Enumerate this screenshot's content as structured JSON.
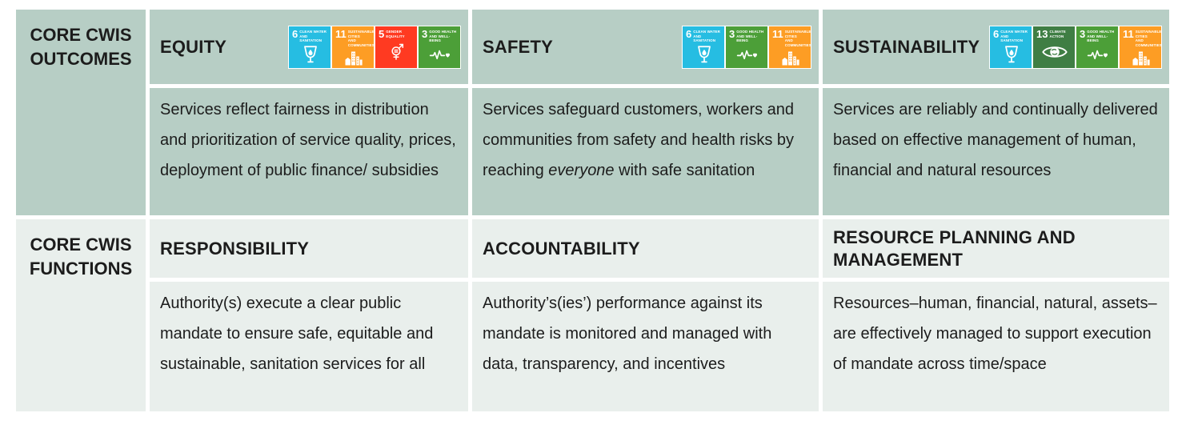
{
  "colors": {
    "outcomes_bg": "#b7cec5",
    "functions_bg": "#e9efec",
    "text": "#1c1c1c",
    "sdg_3": "#4C9F38",
    "sdg_5": "#FF3A21",
    "sdg_6": "#26BDE2",
    "sdg_11": "#FD9D24",
    "sdg_13": "#3F7E44"
  },
  "row_headers": {
    "outcomes": "CORE CWIS OUTCOMES",
    "functions": "CORE CWIS FUNCTIONS"
  },
  "outcomes": [
    {
      "title": "EQUITY",
      "sdg": [
        "6",
        "11",
        "5",
        "3"
      ],
      "desc": "Services reflect fairness in distribution and prioritization of service quality, prices, deployment of public finance/ subsidies"
    },
    {
      "title": "SAFETY",
      "sdg": [
        "6",
        "3",
        "11"
      ],
      "desc_parts": {
        "before": "Services safeguard customers, workers and communities from safety and health risks by reaching ",
        "italic": "everyone",
        "after": " with safe sanitation"
      }
    },
    {
      "title": "SUSTAINABILITY",
      "sdg": [
        "6",
        "13",
        "3",
        "11"
      ],
      "desc": "Services are reliably and continually delivered based on effective management of human, financial and natural resources"
    }
  ],
  "functions": [
    {
      "title": "RESPONSIBILITY",
      "desc": "Authority(s) execute a clear public mandate to ensure safe, equitable and sustainable, sanitation services for all"
    },
    {
      "title": "ACCOUNTABILITY",
      "desc": "Authority’s(ies’) performance against its mandate is monitored and managed with data, transparency, and incentives"
    },
    {
      "title": "RESOURCE PLANNING AND MANAGEMENT",
      "desc": "Resources–human, financial, natural, assets–are effectively managed to support execution of mandate across time/space"
    }
  ],
  "sdg_defs": {
    "3": {
      "number": "3",
      "label_lines": [
        "GOOD HEALTH",
        "AND WELL-BEING"
      ],
      "color": "#4C9F38",
      "glyph": "ecg-heart-icon"
    },
    "5": {
      "number": "5",
      "label_lines": [
        "GENDER",
        "EQUALITY"
      ],
      "color": "#FF3A21",
      "glyph": "gender-equality-icon"
    },
    "6": {
      "number": "6",
      "label_lines": [
        "CLEAN WATER",
        "AND SANITATION"
      ],
      "color": "#26BDE2",
      "glyph": "water-glass-icon"
    },
    "11": {
      "number": "11",
      "label_lines": [
        "SUSTAINABLE CITIES",
        "AND COMMUNITIES"
      ],
      "color": "#FD9D24",
      "glyph": "city-buildings-icon"
    },
    "13": {
      "number": "13",
      "label_lines": [
        "CLIMATE",
        "ACTION"
      ],
      "color": "#3F7E44",
      "glyph": "eye-globe-icon"
    }
  }
}
